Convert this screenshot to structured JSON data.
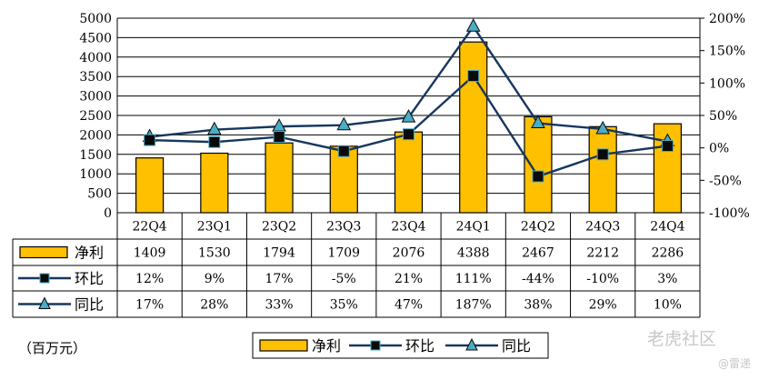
{
  "chart_data": {
    "type": "bar",
    "categories": [
      "22Q4",
      "23Q1",
      "23Q2",
      "23Q3",
      "23Q4",
      "24Q1",
      "24Q2",
      "24Q3",
      "24Q4"
    ],
    "series": [
      {
        "name": "净利",
        "type": "bar",
        "axis": "left",
        "color": "#FFC000",
        "values": [
          1409,
          1530,
          1794,
          1709,
          2076,
          4388,
          2467,
          2212,
          2286
        ],
        "labels": [
          "1409",
          "1530",
          "1794",
          "1709",
          "2076",
          "4388",
          "2467",
          "2212",
          "2286"
        ]
      },
      {
        "name": "环比",
        "type": "line",
        "axis": "right",
        "color": "#17375E",
        "marker": "square",
        "values": [
          12,
          9,
          17,
          -5,
          21,
          111,
          -44,
          -10,
          3
        ],
        "labels": [
          "12%",
          "9%",
          "17%",
          "-5%",
          "21%",
          "111%",
          "-44%",
          "-10%",
          "3%"
        ]
      },
      {
        "name": "同比",
        "type": "line",
        "axis": "right",
        "color": "#17375E",
        "marker": "triangle",
        "marker_color": "#4BACC6",
        "values": [
          17,
          28,
          33,
          35,
          47,
          187,
          38,
          29,
          10
        ],
        "labels": [
          "17%",
          "28%",
          "33%",
          "35%",
          "47%",
          "187%",
          "38%",
          "29%",
          "10%"
        ]
      }
    ],
    "ylim": [
      0,
      5000
    ],
    "y_ticks": [
      "0",
      "500",
      "1000",
      "1500",
      "2000",
      "2500",
      "3000",
      "3500",
      "4000",
      "4500",
      "5000"
    ],
    "y2lim": [
      -100,
      200
    ],
    "y2_ticks": [
      "-100%",
      "-50%",
      "0%",
      "50%",
      "100%",
      "150%",
      "200%"
    ],
    "grid": true,
    "legend": "bottom",
    "data_table": true
  },
  "unit_label": "（百万元）",
  "watermark": "老虎社区",
  "watermark_sub": "@雷递"
}
